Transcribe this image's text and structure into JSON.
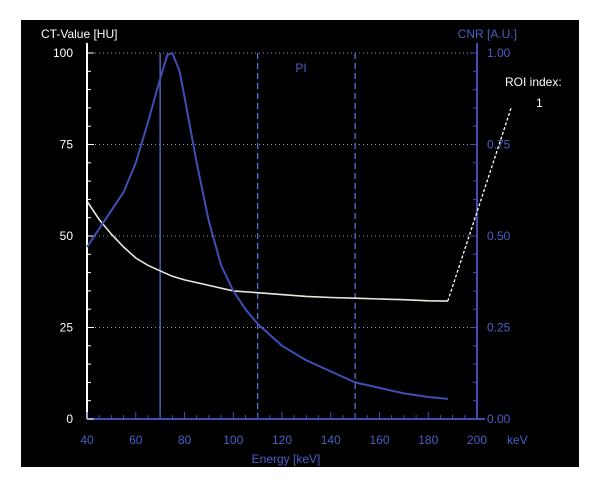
{
  "chart_data": {
    "type": "line",
    "y_left_label": "CT-Value [HU]",
    "y_right_label": "CNR [A.U.]",
    "xlabel": "Energy [keV]",
    "x_unit": "keV",
    "region_label": "PI",
    "roi_label": "ROI index:",
    "roi_value": "1",
    "xlim": [
      40,
      200
    ],
    "ylim_left": [
      0,
      100
    ],
    "ylim_right": [
      0,
      1
    ],
    "x_ticks": [
      "40",
      "60",
      "80",
      "100",
      "120",
      "140",
      "160",
      "180",
      "200"
    ],
    "y_left_ticks": [
      "0",
      "25",
      "50",
      "75",
      "100"
    ],
    "y_right_ticks": [
      "0.00",
      "0.25",
      "0.50",
      "0.75",
      "1.00"
    ],
    "grid": true,
    "marker_lines": [
      {
        "x": 70,
        "style": "solid"
      },
      {
        "x": 110,
        "style": "dashed"
      },
      {
        "x": 150,
        "style": "dashed"
      }
    ],
    "series": [
      {
        "axis": "left",
        "color": "#e8e8dc",
        "x": [
          40,
          45,
          50,
          55,
          60,
          65,
          70,
          75,
          80,
          90,
          100,
          110,
          120,
          130,
          140,
          150,
          160,
          170,
          180,
          188
        ],
        "y": [
          59.5,
          54.5,
          50.5,
          47,
          44,
          42,
          40.5,
          39,
          38,
          36.5,
          35,
          34.5,
          34,
          33.5,
          33.2,
          33,
          32.8,
          32.6,
          32.3,
          32.2
        ]
      },
      {
        "axis": "right",
        "color": "#3d4fb5",
        "x": [
          40,
          45,
          50,
          55,
          60,
          65,
          70,
          73,
          75,
          78,
          80,
          85,
          90,
          95,
          100,
          105,
          110,
          120,
          130,
          140,
          150,
          160,
          170,
          180,
          188
        ],
        "y": [
          0.47,
          0.52,
          0.57,
          0.62,
          0.7,
          0.81,
          0.93,
          0.995,
          1.0,
          0.95,
          0.88,
          0.7,
          0.54,
          0.42,
          0.35,
          0.3,
          0.26,
          0.2,
          0.16,
          0.13,
          0.1,
          0.085,
          0.07,
          0.06,
          0.055
        ]
      }
    ],
    "roi_leader": {
      "x": [
        188,
        214
      ],
      "y_left": [
        32.2,
        85
      ]
    }
  },
  "colors": {
    "background": "#000000",
    "axis_white": "#ffffff",
    "axis_blue": "#3d4fb5",
    "grid": "#9a9a9a",
    "marker": "#5a6fd0"
  }
}
